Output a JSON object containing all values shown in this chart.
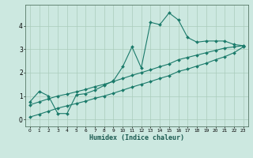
{
  "xlabel": "Humidex (Indice chaleur)",
  "background_color": "#cce8e0",
  "grid_color": "#aaccbb",
  "line_color": "#1a7a6a",
  "xlim": [
    -0.5,
    23.5
  ],
  "ylim": [
    -0.3,
    4.9
  ],
  "xticks": [
    0,
    1,
    2,
    3,
    4,
    5,
    6,
    7,
    8,
    9,
    10,
    11,
    12,
    13,
    14,
    15,
    16,
    17,
    18,
    19,
    20,
    21,
    22,
    23
  ],
  "yticks": [
    0,
    1,
    2,
    3,
    4
  ],
  "main_x": [
    0,
    1,
    2,
    3,
    4,
    5,
    6,
    7,
    8,
    9,
    10,
    11,
    12,
    13,
    14,
    15,
    16,
    17,
    18,
    19,
    20,
    21,
    22,
    23
  ],
  "main_y": [
    0.75,
    1.2,
    1.0,
    0.25,
    0.25,
    1.05,
    1.1,
    1.25,
    1.45,
    1.65,
    2.25,
    3.1,
    2.2,
    4.15,
    4.05,
    4.55,
    4.25,
    3.5,
    3.3,
    3.35,
    3.35,
    3.35,
    3.2,
    3.15
  ],
  "diag1_x": [
    0,
    1,
    2,
    3,
    4,
    5,
    6,
    7,
    8,
    9,
    10,
    11,
    12,
    13,
    14,
    15,
    16,
    17,
    18,
    19,
    20,
    21,
    22,
    23
  ],
  "diag1_y": [
    0.62,
    0.75,
    0.88,
    1.0,
    1.08,
    1.18,
    1.28,
    1.4,
    1.5,
    1.62,
    1.75,
    1.88,
    2.0,
    2.12,
    2.25,
    2.37,
    2.55,
    2.65,
    2.75,
    2.85,
    2.95,
    3.05,
    3.1,
    3.15
  ],
  "diag2_x": [
    0,
    1,
    2,
    3,
    4,
    5,
    6,
    7,
    8,
    9,
    10,
    11,
    12,
    13,
    14,
    15,
    16,
    17,
    18,
    19,
    20,
    21,
    22,
    23
  ],
  "diag2_y": [
    0.1,
    0.22,
    0.35,
    0.48,
    0.58,
    0.68,
    0.78,
    0.9,
    1.0,
    1.12,
    1.25,
    1.38,
    1.5,
    1.62,
    1.75,
    1.87,
    2.05,
    2.15,
    2.28,
    2.4,
    2.55,
    2.68,
    2.85,
    3.1
  ]
}
